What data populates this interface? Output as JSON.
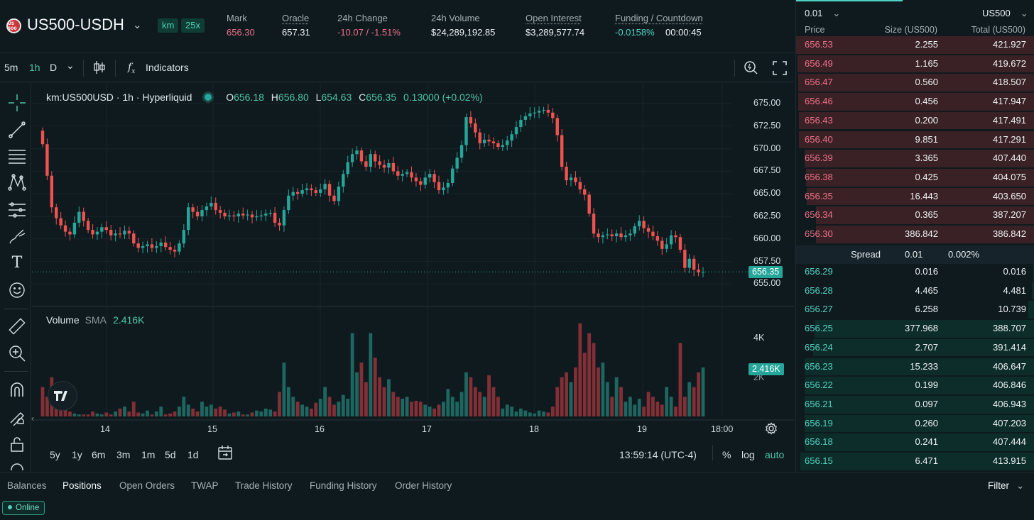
{
  "header": {
    "coin_badge": "US 500",
    "symbol": "US500-USDH",
    "tags": [
      "km",
      "25x"
    ],
    "stats": [
      {
        "label": "Mark",
        "value": "656.30",
        "color": "red",
        "underline": false
      },
      {
        "label": "Oracle",
        "value": "657.31",
        "color": "white",
        "underline": true
      },
      {
        "label": "24h Change",
        "value": "-10.07 / -1.51%",
        "color": "red",
        "underline": false
      },
      {
        "label": "24h Volume",
        "value": "$24,289,192.85",
        "color": "white",
        "underline": false
      },
      {
        "label": "Open Interest",
        "value": "$3,289,577.74",
        "color": "white",
        "underline": true
      },
      {
        "label": "Funding / Countdown",
        "value": "-0.0158%",
        "value2": "00:00:45",
        "color": "green",
        "underline": true
      }
    ]
  },
  "toolbar": {
    "intervals": [
      "5m",
      "1h",
      "D"
    ],
    "active_interval": "1h",
    "indicators_label": "Indicators"
  },
  "legend": {
    "title": "km:US500USD · 1h · Hyperliquid",
    "o_label": "O",
    "o": "656.18",
    "h_label": "H",
    "h": "656.80",
    "l_label": "L",
    "l": "654.63",
    "c_label": "C",
    "c": "656.35",
    "change": "0.13000 (+0.02%)"
  },
  "volume_legend": {
    "label": "Volume",
    "sma_label": "SMA",
    "sma_value": "2.416K"
  },
  "price_axis": [
    "675.00",
    "672.50",
    "670.00",
    "667.50",
    "665.00",
    "662.50",
    "660.00",
    "657.50",
    "655.00"
  ],
  "last_price_tag": "656.35",
  "volume_axis": [
    "4K",
    "2K"
  ],
  "volume_tag": "2.416K",
  "time_axis": [
    "14",
    "15",
    "16",
    "17",
    "18",
    "19",
    "18:00"
  ],
  "periods": [
    "5y",
    "1y",
    "6m",
    "3m",
    "1m",
    "5d",
    "1d"
  ],
  "clock": "13:59:14 (UTC-4)",
  "scale_opts": [
    "%",
    "log",
    "auto"
  ],
  "colors": {
    "up": "#26a69a",
    "down": "#ef5350",
    "bg": "#0f1a1f",
    "accent": "#50d2c1"
  },
  "chart_data": {
    "type": "candlestick",
    "x_labels": [
      "14",
      "15",
      "16",
      "17",
      "18",
      "19",
      "18:00"
    ],
    "ylim": [
      654.0,
      676.0
    ],
    "candles_close": [
      670.5,
      667.0,
      663.5,
      662.3,
      661.5,
      660.8,
      660.5,
      661.8,
      663.0,
      662.0,
      661.0,
      660.5,
      660.8,
      661.3,
      661.0,
      660.4,
      660.6,
      660.5,
      660.9,
      660.6,
      659.5,
      659.0,
      659.2,
      659.4,
      659.0,
      659.2,
      659.6,
      659.1,
      658.8,
      658.6,
      659.5,
      661.0,
      663.5,
      663.0,
      662.5,
      663.2,
      663.6,
      664.0,
      663.2,
      662.9,
      662.5,
      662.6,
      662.5,
      662.8,
      662.6,
      662.7,
      662.4,
      662.5,
      662.6,
      662.8,
      662.9,
      661.8,
      661.5,
      663.2,
      664.8,
      665.2,
      665.0,
      665.4,
      665.6,
      665.4,
      665.1,
      665.5,
      666.1,
      664.8,
      664.2,
      665.8,
      667.2,
      668.5,
      669.4,
      669.8,
      668.6,
      668.0,
      669.4,
      668.6,
      668.2,
      667.9,
      668.4,
      667.5,
      667.0,
      667.2,
      667.4,
      666.8,
      666.4,
      666.0,
      666.8,
      667.2,
      666.3,
      665.4,
      665.7,
      666.2,
      667.8,
      669.0,
      670.4,
      673.5,
      672.8,
      671.8,
      670.6,
      671.0,
      670.8,
      670.6,
      670.2,
      670.4,
      670.9,
      671.6,
      672.4,
      673.2,
      673.6,
      673.9,
      674.0,
      674.2,
      674.3,
      674.0,
      673.4,
      671.5,
      668.0,
      666.5,
      666.8,
      666.3,
      665.5,
      664.9,
      662.8,
      660.6,
      660.2,
      660.4,
      660.5,
      660.3,
      660.6,
      660.2,
      660.4,
      660.6,
      661.4,
      662.0,
      661.2,
      660.8,
      660.3,
      659.8,
      658.9,
      659.4,
      660.4,
      660.2,
      658.8,
      656.8,
      657.8,
      656.6,
      656.3,
      656.35
    ],
    "volume_relative": [
      0.3,
      0.2,
      0.4,
      0.15,
      0.25,
      0.1,
      0.05,
      0.03,
      0.02,
      0.02,
      0.02,
      0.05,
      0.03,
      0.02,
      0.04,
      0.02,
      0.05,
      0.08,
      0.1,
      0.05,
      0.15,
      0.04,
      0.03,
      0.06,
      0.02,
      0.05,
      0.1,
      0.02,
      0.03,
      0.05,
      0.1,
      0.2,
      0.12,
      0.08,
      0.05,
      0.15,
      0.1,
      0.12,
      0.08,
      0.1,
      0.07,
      0.03,
      0.04,
      0.05,
      0.02,
      0.02,
      0.04,
      0.06,
      0.05,
      0.08,
      0.07,
      0.05,
      0.25,
      0.55,
      0.3,
      0.2,
      0.15,
      0.12,
      0.1,
      0.08,
      0.14,
      0.18,
      0.3,
      0.2,
      0.12,
      0.15,
      0.22,
      0.18,
      0.85,
      0.45,
      0.55,
      0.35,
      0.85,
      0.6,
      0.4,
      0.3,
      0.38,
      0.25,
      0.2,
      0.18,
      0.2,
      0.15,
      0.16,
      0.15,
      0.12,
      0.1,
      0.08,
      0.12,
      0.15,
      0.28,
      0.2,
      0.15,
      0.25,
      0.45,
      0.4,
      0.3,
      0.25,
      0.2,
      0.42,
      0.3,
      0.2,
      0.08,
      0.12,
      0.1,
      0.05,
      0.08,
      0.06,
      0.04,
      0.03,
      0.06,
      0.05,
      0.04,
      0.1,
      0.3,
      0.4,
      0.45,
      0.35,
      0.5,
      0.95,
      0.65,
      0.85,
      0.75,
      0.5,
      0.55,
      0.35,
      0.2,
      0.4,
      0.3,
      0.15,
      0.2,
      0.12,
      0.18,
      0.1,
      0.25,
      0.2,
      0.15,
      0.12,
      0.3,
      0.2,
      0.1,
      0.75,
      0.2,
      0.35,
      0.3,
      0.45,
      0.5
    ]
  },
  "orderbook": {
    "tick": "0.01",
    "unit": "US500",
    "headers": [
      "Price",
      "Size (US500)",
      "Total (US500)"
    ],
    "asks": [
      [
        "656.53",
        "2.255",
        "421.927"
      ],
      [
        "656.49",
        "1.165",
        "419.672"
      ],
      [
        "656.47",
        "0.560",
        "418.507"
      ],
      [
        "656.46",
        "0.456",
        "417.947"
      ],
      [
        "656.43",
        "0.200",
        "417.491"
      ],
      [
        "656.40",
        "9.851",
        "417.291"
      ],
      [
        "656.39",
        "3.365",
        "407.440"
      ],
      [
        "656.38",
        "0.425",
        "404.075"
      ],
      [
        "656.35",
        "16.443",
        "403.650"
      ],
      [
        "656.34",
        "0.365",
        "387.207"
      ],
      [
        "656.30",
        "386.842",
        "386.842"
      ]
    ],
    "spread_label": "Spread",
    "spread_value": "0.01",
    "spread_pct": "0.002%",
    "bids": [
      [
        "656.29",
        "0.016",
        "0.016"
      ],
      [
        "656.28",
        "4.465",
        "4.481"
      ],
      [
        "656.27",
        "6.258",
        "10.739"
      ],
      [
        "656.25",
        "377.968",
        "388.707"
      ],
      [
        "656.24",
        "2.707",
        "391.414"
      ],
      [
        "656.23",
        "15.233",
        "406.647"
      ],
      [
        "656.22",
        "0.199",
        "406.846"
      ],
      [
        "656.21",
        "0.097",
        "406.943"
      ],
      [
        "656.19",
        "0.260",
        "407.203"
      ],
      [
        "656.18",
        "0.241",
        "407.444"
      ],
      [
        "656.15",
        "6.471",
        "413.915"
      ]
    ]
  },
  "bottom": {
    "tabs": [
      "Balances",
      "Positions",
      "Open Orders",
      "TWAP",
      "Trade History",
      "Funding History",
      "Order History"
    ],
    "active_tab": "Positions",
    "filter_label": "Filter",
    "status": "Online"
  }
}
